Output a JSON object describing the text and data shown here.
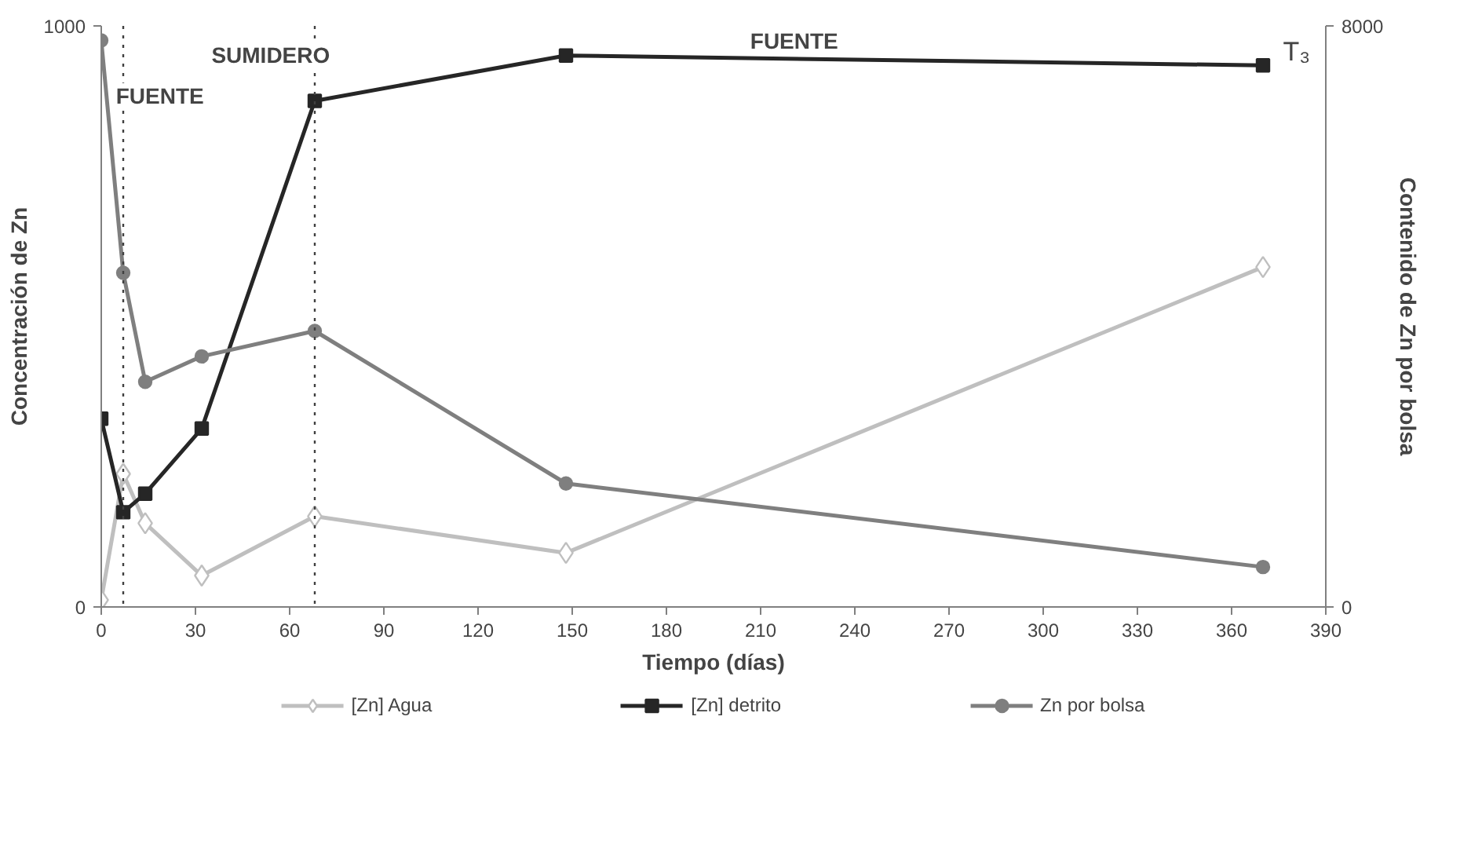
{
  "chart_data": {
    "type": "line",
    "xlabel": "Tiempo (días)",
    "ylabel": "Concentración de Zn",
    "y2label": "Contenido de Zn por bolsa",
    "xlim": [
      0,
      390
    ],
    "xticks": [
      0,
      30,
      60,
      90,
      120,
      150,
      180,
      210,
      240,
      270,
      300,
      330,
      360,
      390
    ],
    "ylim": [
      0,
      1000
    ],
    "yticks": [
      0,
      1000
    ],
    "y2lim": [
      0,
      8000
    ],
    "y2ticks": [
      0,
      8000
    ],
    "grid": false,
    "legend": "bottom",
    "line_style": "solid",
    "series": [
      {
        "name": "[Zn] Agua",
        "color": "#bfbfbf",
        "marker": "diamond",
        "x": [
          0,
          7,
          14,
          32,
          68,
          148,
          370
        ],
        "values": [
          12,
          229,
          144,
          54,
          156,
          93,
          585
        ]
      },
      {
        "name": "[Zn] detrito",
        "color": "#262626",
        "marker": "square",
        "x": [
          0,
          7,
          14,
          32,
          68,
          148,
          370
        ],
        "values": [
          324,
          163,
          195,
          307,
          871,
          949,
          932
        ]
      },
      {
        "name": "Zn por bolsa",
        "color": "#7f7f7f",
        "marker": "circle",
        "axis": "y2",
        "x": [
          0,
          7,
          14,
          32,
          68,
          148,
          370
        ],
        "values": [
          7800,
          4600,
          3100,
          3450,
          3800,
          1700,
          550
        ]
      }
    ],
    "ref_lines": [
      {
        "axis": "x",
        "value": 7,
        "line_style": "dotted",
        "color": "#404040"
      },
      {
        "axis": "x",
        "value": 68,
        "line_style": "dotted",
        "color": "#404040"
      }
    ],
    "annotations": [
      "FUENTE",
      "SUMIDERO",
      "FUENTE",
      "T₃"
    ]
  }
}
